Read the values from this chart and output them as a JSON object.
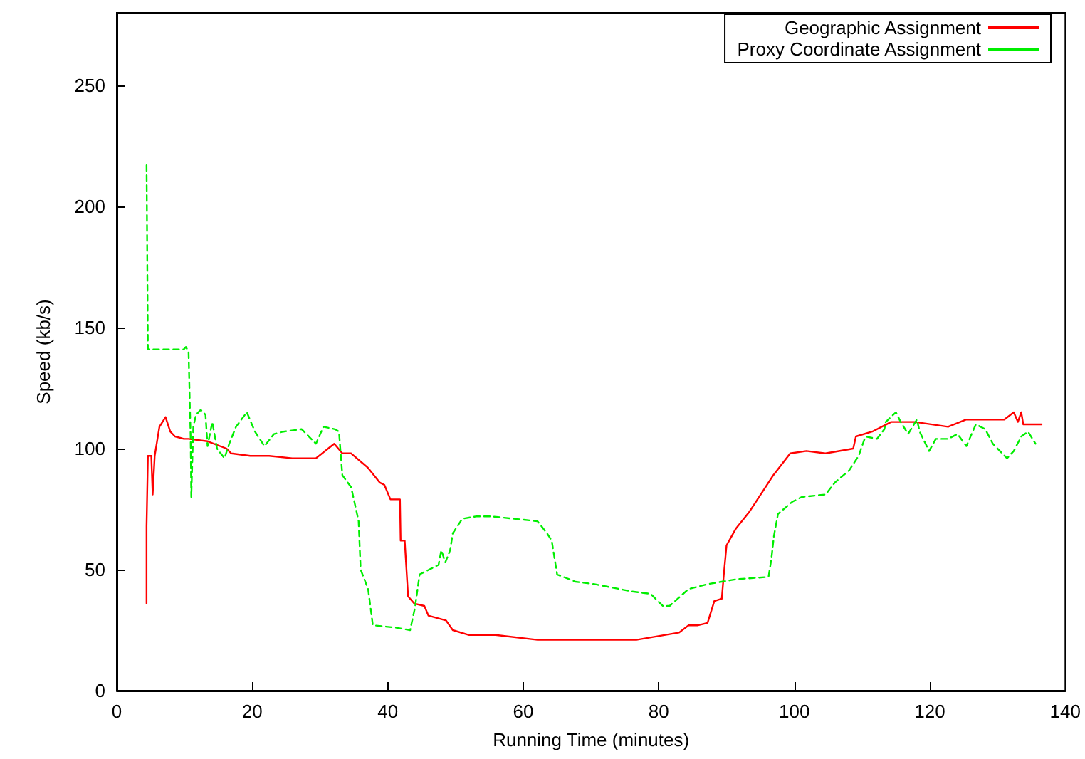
{
  "chart_data": {
    "type": "line",
    "xlabel": "Running Time (minutes)",
    "ylabel": "Speed (kb/s)",
    "xlim": [
      0,
      140
    ],
    "xticks": [
      0,
      20,
      40,
      60,
      80,
      100,
      120,
      140
    ],
    "ylim": [
      0,
      280
    ],
    "yticks": [
      0,
      50,
      100,
      150,
      200,
      250
    ],
    "grid": false,
    "legend": "top right",
    "marker": "none",
    "series": [
      {
        "name": "Geographic Assignment",
        "color": "#ff0000",
        "line_style": "solid",
        "x": [
          4.4,
          4.4,
          4.6,
          5.1,
          5.3,
          5.6,
          6.3,
          7.2,
          7.9,
          8.6,
          9.9,
          10.6,
          13.4,
          16.2,
          16.9,
          19.7,
          22.5,
          25.9,
          28.7,
          29.4,
          31.2,
          32.1,
          33.3,
          34.6,
          37.1,
          38.8,
          39.5,
          40.4,
          41.8,
          41.9,
          42.5,
          43,
          43.9,
          45.4,
          46,
          48.6,
          49.6,
          52,
          55.9,
          62.1,
          67.7,
          76.7,
          83,
          84.4,
          85.8,
          87.2,
          88.2,
          89.3,
          89.6,
          90,
          91.4,
          93.4,
          95.5,
          96.9,
          99.4,
          101.8,
          104.6,
          108.7,
          109.1,
          111.5,
          114.3,
          117.8,
          122.7,
          125.4,
          128.2,
          131,
          132.4,
          133,
          133.5,
          133.8,
          135.6,
          136.5
        ],
        "values": [
          36,
          68,
          97,
          97,
          81,
          97,
          109,
          113,
          107,
          105,
          104,
          104,
          103,
          100,
          98,
          97,
          97,
          96,
          96,
          96,
          100,
          102,
          98,
          98,
          92,
          86,
          85,
          79,
          79,
          62,
          62,
          39,
          36,
          35,
          31,
          29,
          25,
          23,
          23,
          21,
          21,
          21,
          24,
          27,
          27,
          28,
          37,
          38,
          48,
          60,
          67,
          74,
          83,
          89,
          98,
          99,
          98,
          100,
          105,
          107,
          111,
          111,
          109,
          112,
          112,
          112,
          115,
          111,
          115,
          110,
          110,
          110
        ]
      },
      {
        "name": "Proxy Coordinate Assignment",
        "color": "#00ee00",
        "line_style": "dashed",
        "x": [
          4.4,
          4.6,
          9.9,
          10.2,
          10.6,
          10.9,
          11,
          11.3,
          11.7,
          12.4,
          13.1,
          13.4,
          14.1,
          14.8,
          15.9,
          16.6,
          17.6,
          19.2,
          20.4,
          21.8,
          23.2,
          24.6,
          27.3,
          29.4,
          30.5,
          32.2,
          32.8,
          33.3,
          34.6,
          35.7,
          36,
          37.1,
          37.8,
          41.3,
          43.3,
          44,
          44.7,
          47.5,
          47.9,
          48.5,
          49.2,
          49.6,
          51,
          53.1,
          55.2,
          62.1,
          63.5,
          64.2,
          65,
          67.7,
          70.5,
          76,
          78.8,
          80.6,
          81.6,
          84.4,
          87.2,
          91.4,
          96.2,
          96.6,
          97,
          97.6,
          99.7,
          101.1,
          104.6,
          106,
          108.1,
          109.5,
          110.5,
          112.2,
          113.3,
          113.5,
          115,
          115.7,
          116.8,
          118.1,
          118.5,
          119.9,
          120.9,
          122.7,
          124.1,
          125.4,
          126.8,
          128.2,
          129.3,
          131.4,
          132.4,
          133.5,
          134.5,
          135.6
        ],
        "values": [
          217,
          141,
          141,
          142,
          140,
          105,
          80,
          109,
          114,
          116,
          114,
          101,
          111,
          100,
          96,
          102,
          109,
          115,
          107,
          101,
          106,
          107,
          108,
          102,
          109,
          108,
          107,
          89,
          84,
          70,
          50,
          42,
          27,
          26,
          25,
          34,
          48,
          52,
          58,
          53,
          58,
          65,
          71,
          72,
          72,
          70,
          65,
          62,
          48,
          45,
          44,
          41,
          40,
          35,
          35,
          42,
          44,
          46,
          47,
          54,
          64,
          73,
          78,
          80,
          81,
          86,
          91,
          97,
          105,
          104,
          108,
          111,
          115,
          111,
          106,
          112,
          107,
          99,
          104,
          104,
          106,
          101,
          110,
          108,
          102,
          96,
          99,
          105,
          107,
          102
        ]
      }
    ]
  }
}
